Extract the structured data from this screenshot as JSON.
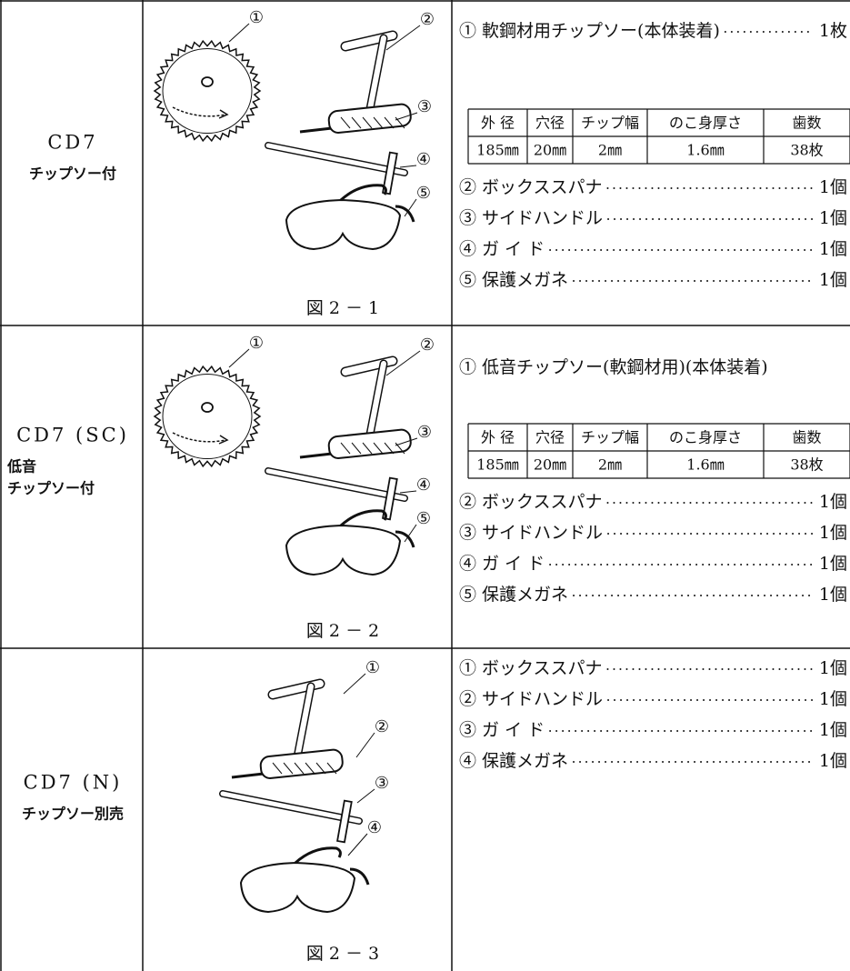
{
  "rows": [
    {
      "model": "CD7",
      "sublabel": [
        "チップソー付"
      ],
      "figure": {
        "callouts": [
          "①",
          "②",
          "③",
          "④",
          "⑤"
        ],
        "caption": "図2－1"
      },
      "items": [
        {
          "label": "① 軟鋼材用チップソー(本体装着)",
          "qty": "1枚"
        }
      ],
      "spec": {
        "headers": [
          "外 径",
          "穴径",
          "チップ幅",
          "のこ身厚さ",
          "歯数"
        ],
        "values": [
          "185㎜",
          "20㎜",
          "2㎜",
          "1.6㎜",
          "38枚"
        ]
      },
      "items2": [
        {
          "label": "② ボックススパナ",
          "qty": "1個"
        },
        {
          "label": "③ サイドハンドル",
          "qty": "1個"
        },
        {
          "label": "④ ガ イ ド",
          "qty": "1個"
        },
        {
          "label": "⑤ 保護メガネ",
          "qty": "1個"
        }
      ]
    },
    {
      "model": "CD7 (SC)",
      "sublabel": [
        "低音",
        "チップソー付"
      ],
      "figure": {
        "callouts": [
          "①",
          "②",
          "③",
          "④",
          "⑤"
        ],
        "caption": "図2－2"
      },
      "items": [
        {
          "label": "① 低音チップソー(軟鋼材用)(本体装着)"
        }
      ],
      "spec": {
        "headers": [
          "外 径",
          "穴径",
          "チップ幅",
          "のこ身厚さ",
          "歯数"
        ],
        "values": [
          "185㎜",
          "20㎜",
          "2㎜",
          "1.6㎜",
          "38枚"
        ]
      },
      "items2": [
        {
          "label": "② ボックススパナ",
          "qty": "1個"
        },
        {
          "label": "③ サイドハンドル",
          "qty": "1個"
        },
        {
          "label": "④ ガ イ ド",
          "qty": "1個"
        },
        {
          "label": "⑤ 保護メガネ",
          "qty": "1個"
        }
      ]
    },
    {
      "model": "CD7 (N)",
      "sublabel": [
        "チップソー別売"
      ],
      "figure": {
        "callouts": [
          "①",
          "②",
          "③",
          "④"
        ],
        "caption": "図2－3"
      },
      "items": [
        {
          "label": "① ボックススパナ",
          "qty": "1個"
        },
        {
          "label": "② サイドハンドル",
          "qty": "1個"
        },
        {
          "label": "③ ガ イ ド",
          "qty": "1個"
        },
        {
          "label": "④ 保護メガネ",
          "qty": "1個"
        }
      ]
    }
  ]
}
